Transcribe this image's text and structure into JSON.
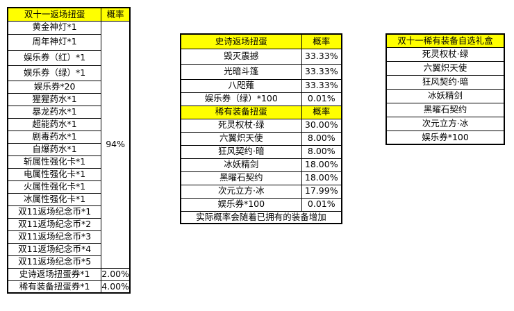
{
  "table1": {
    "header": [
      "双十一返场扭蛋",
      "概率"
    ],
    "items": [
      "黄金神灯*1",
      "周年神灯*1",
      "娱乐券（红）*1",
      "娱乐券（绿）*1",
      "娱乐券*20",
      "猩猩药水*1",
      "暴龙药水*1",
      "超能药水*1",
      "剧毒药水*1",
      "自爆药水*1",
      "斩属性强化卡*1",
      "电属性强化卡*1",
      "火属性强化卡*1",
      "冰属性强化卡*1",
      "双11返场纪念币*1",
      "双11返场纪念币*2",
      "双11返场纪念币*3",
      "双11返场纪念币*4",
      "双11返场纪念币*5"
    ],
    "group_rate": "94%",
    "extra": [
      {
        "name": "史诗返场扭蛋券*1",
        "rate": "2.00%"
      },
      {
        "name": "稀有装备扭蛋券*1",
        "rate": "4.00%"
      }
    ]
  },
  "table2": {
    "epic": {
      "header": [
        "史诗返场扭蛋",
        "概率"
      ],
      "rows": [
        {
          "name": "毁灭震撼",
          "rate": "33.33%"
        },
        {
          "name": "光暗斗篷",
          "rate": "33.33%"
        },
        {
          "name": "八咫薙",
          "rate": "33.33%"
        },
        {
          "name": "娱乐券（绿）*100",
          "rate": "0.01%"
        }
      ]
    },
    "rare": {
      "header": [
        "稀有装备扭蛋",
        "概率"
      ],
      "rows": [
        {
          "name": "死灵权杖·绿",
          "rate": "30.00%"
        },
        {
          "name": "六翼炽天使",
          "rate": "8.00%"
        },
        {
          "name": "狂风契约·暗",
          "rate": "8.00%"
        },
        {
          "name": "冰妖精剑",
          "rate": "18.00%"
        },
        {
          "name": "黑曜石契约",
          "rate": "18.00%"
        },
        {
          "name": "次元立方·冰",
          "rate": "17.99%"
        },
        {
          "name": "娱乐券*100",
          "rate": "0.01%"
        }
      ]
    },
    "note": "实际概率会随着已拥有的装备增加"
  },
  "table3": {
    "header": "双十一稀有装备自选礼盒",
    "items": [
      "死灵权杖·绿",
      "六翼炽天使",
      "狂风契约·暗",
      "冰妖精剑",
      "黑曜石契约",
      "次元立方·冰",
      "娱乐券*100"
    ]
  },
  "colors": {
    "header_bg": "#ffff00"
  }
}
